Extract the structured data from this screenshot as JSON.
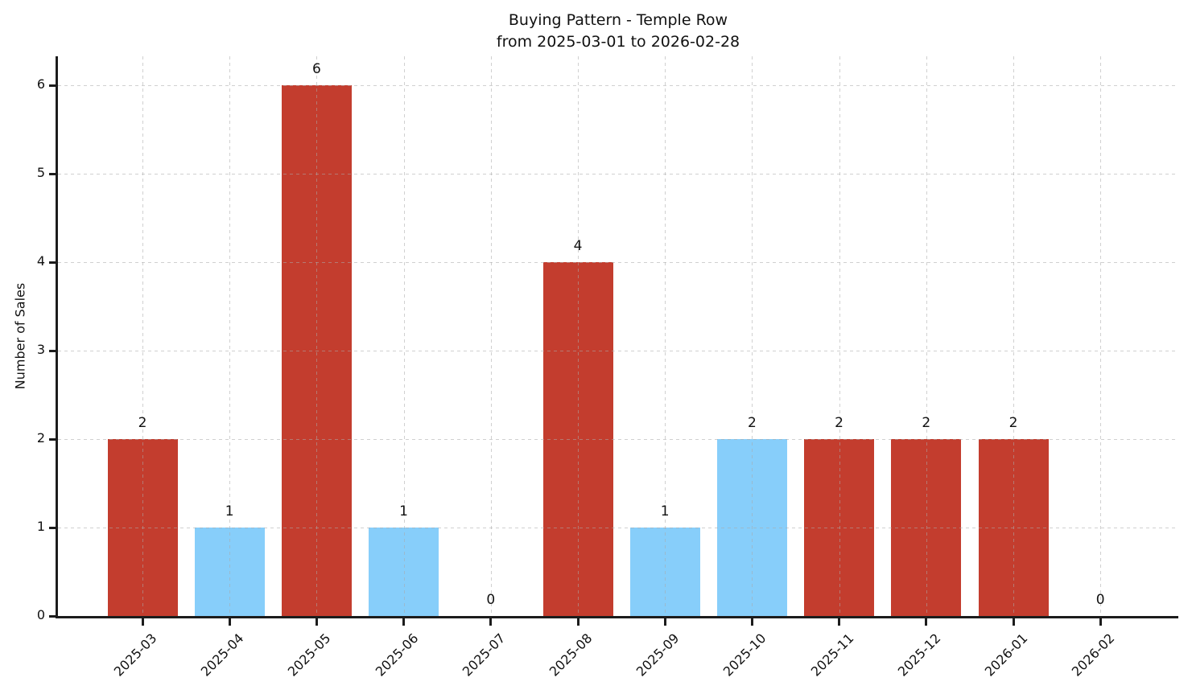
{
  "figure": {
    "title_line1": "Buying Pattern - Temple Row",
    "title_line2": "from 2025-03-01 to 2026-02-28"
  },
  "colors": {
    "bar_red": "#c33d2e",
    "bar_blue": "#87cefa",
    "axis": "#1c1c1c",
    "grid": "#cccccc",
    "text": "#111111"
  },
  "chart_data": {
    "type": "bar",
    "title": "Buying Pattern - Temple Row",
    "subtitle": "from 2025-03-01 to 2026-02-28",
    "xlabel": "",
    "ylabel": "Number of Sales",
    "categories": [
      "2025-03",
      "2025-04",
      "2025-05",
      "2025-06",
      "2025-07",
      "2025-08",
      "2025-09",
      "2025-10",
      "2025-11",
      "2025-12",
      "2026-01",
      "2026-02"
    ],
    "values": [
      2,
      1,
      6,
      1,
      0,
      4,
      1,
      2,
      2,
      2,
      2,
      0
    ],
    "value_labels": [
      "2",
      "1",
      "6",
      "1",
      "0",
      "4",
      "1",
      "2",
      "2",
      "2",
      "2",
      "0"
    ],
    "bar_colors": [
      "#c33d2e",
      "#87cefa",
      "#c33d2e",
      "#87cefa",
      "#c33d2e",
      "#c33d2e",
      "#87cefa",
      "#87cefa",
      "#c33d2e",
      "#c33d2e",
      "#c33d2e",
      "#c33d2e"
    ],
    "yticks": [
      0,
      1,
      2,
      3,
      4,
      5,
      6
    ],
    "ylim": [
      0,
      6.33
    ],
    "grid": "dashed-both-axes",
    "legend": "none",
    "bar_value_labels_shown": true,
    "xtick_rotation_deg": 45
  }
}
